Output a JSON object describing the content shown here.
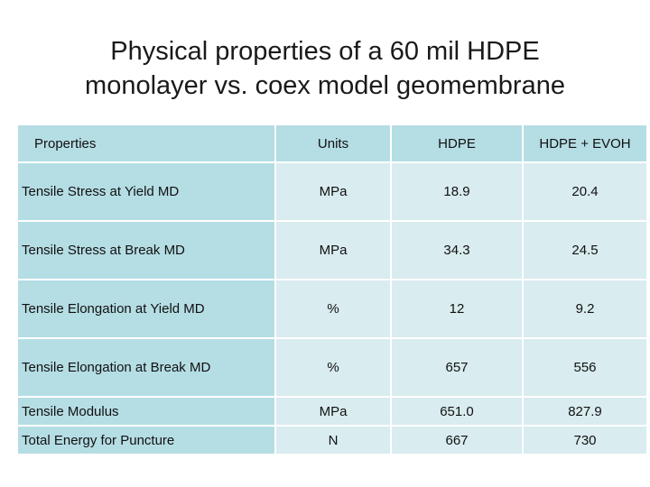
{
  "title": {
    "line1": "Physical properties of a 60 mil HDPE",
    "line2": "monolayer vs. coex model geomembrane"
  },
  "table": {
    "headers": [
      "Properties",
      "Units",
      "HDPE",
      "HDPE + EVOH"
    ],
    "rows": [
      [
        "Tensile Stress at Yield MD",
        "MPa",
        "18.9",
        "20.4"
      ],
      [
        "Tensile Stress at Break MD",
        "MPa",
        "34.3",
        "24.5"
      ],
      [
        "Tensile Elongation at Yield MD",
        "%",
        "12",
        "9.2"
      ],
      [
        "Tensile Elongation at Break MD",
        "%",
        "657",
        "556"
      ],
      [
        "Tensile Modulus",
        "MPa",
        "651.0",
        "827.9"
      ],
      [
        "Total Energy for Puncture",
        "N",
        "667",
        "730"
      ]
    ]
  }
}
